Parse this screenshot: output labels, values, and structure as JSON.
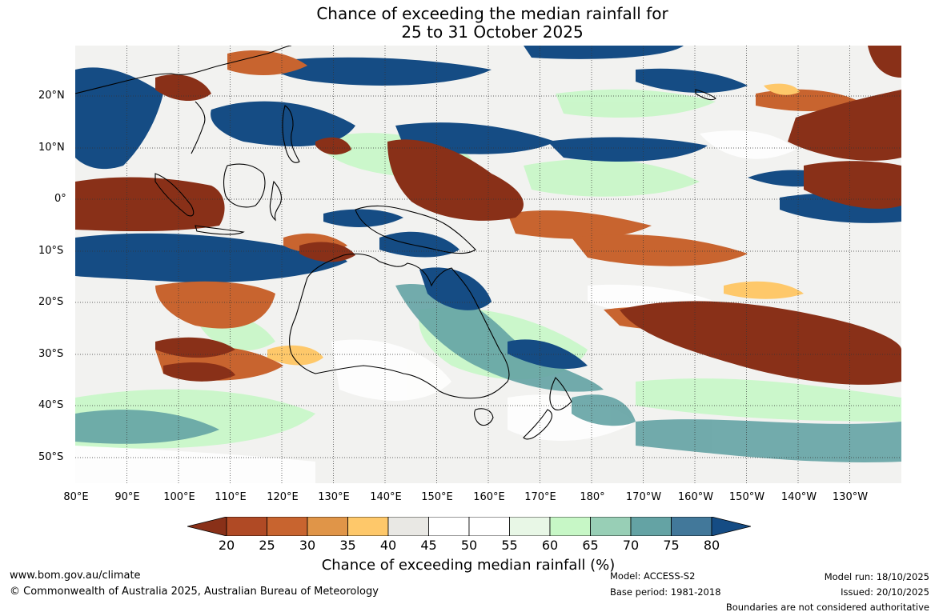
{
  "title": {
    "line1": "Chance of exceeding the median rainfall for",
    "line2": "25 to 31 October 2025"
  },
  "map": {
    "lat_labels": [
      "20°N",
      "10°N",
      "0°",
      "10°S",
      "20°S",
      "30°S",
      "40°S",
      "50°S"
    ],
    "lon_labels": [
      "80°E",
      "90°E",
      "100°E",
      "110°E",
      "120°E",
      "130°E",
      "140°E",
      "150°E",
      "160°E",
      "170°E",
      "180°",
      "170°W",
      "160°W",
      "150°W",
      "140°W",
      "130°W"
    ]
  },
  "colorbar": {
    "ticks": [
      "20",
      "25",
      "30",
      "35",
      "40",
      "45",
      "50",
      "55",
      "60",
      "65",
      "70",
      "75",
      "80"
    ],
    "colors": [
      "#893018",
      "#b04a25",
      "#c8642f",
      "#e09548",
      "#fec86a",
      "#e9e8e4",
      "#ffffff",
      "#ffffff",
      "#e8f7e6",
      "#c7f7c6",
      "#98cfb6",
      "#64a3a4",
      "#42789a",
      "#154c84"
    ],
    "label": "Chance of exceeding median rainfall (%)"
  },
  "footer": {
    "website": "www.bom.gov.au/climate",
    "copyright": "© Commonwealth of Australia 2025, Australian Bureau of Meteorology",
    "model": "Model: ACCESS-S2",
    "base_period": "Base period: 1981-2018",
    "model_run": "Model run: 18/10/2025",
    "issued": "Issued: 20/10/2025",
    "disclaimer": "Boundaries are not considered authoritative"
  }
}
